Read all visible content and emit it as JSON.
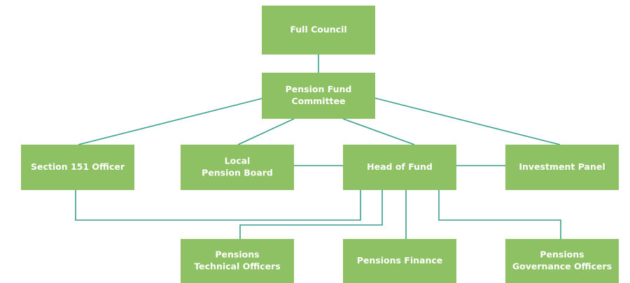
{
  "nodes": [
    {
      "lines": [
        "Full Council"
      ]
    },
    {
      "lines": [
        "Pension Fund",
        "Committee"
      ]
    },
    {
      "lines": [
        "Section 151 Officer"
      ]
    },
    {
      "lines": [
        "Local",
        "Pension Board"
      ]
    },
    {
      "lines": [
        "Head of Fund"
      ]
    },
    {
      "lines": [
        "Investment Panel"
      ]
    },
    {
      "lines": [
        "Pensions",
        "Technical Officers"
      ]
    },
    {
      "lines": [
        "Pensions Finance"
      ]
    },
    {
      "lines": [
        "Pensions",
        "Governance Officers"
      ]
    }
  ]
}
